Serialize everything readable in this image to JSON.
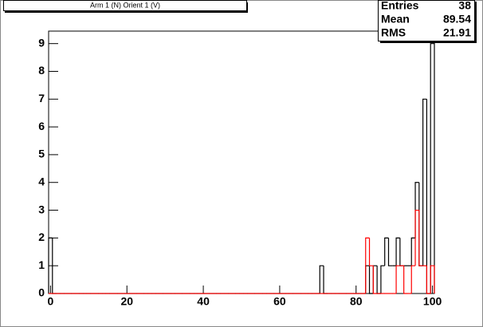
{
  "chart_data": {
    "type": "histogram",
    "title": "Arm 1 (N) Orient 1 (V)",
    "bins": [
      -0.5,
      0.5,
      1.5,
      2.5,
      3.5,
      4.5,
      5.5,
      6.5,
      7.5,
      8.5,
      9.5,
      10.5,
      11.5,
      12.5,
      13.5,
      14.5,
      15.5,
      16.5,
      17.5,
      18.5,
      19.5,
      20.5,
      21.5,
      22.5,
      23.5,
      24.5,
      25.5,
      26.5,
      27.5,
      28.5,
      29.5,
      30.5,
      31.5,
      32.5,
      33.5,
      34.5,
      35.5,
      36.5,
      37.5,
      38.5,
      39.5,
      40.5,
      41.5,
      42.5,
      43.5,
      44.5,
      45.5,
      46.5,
      47.5,
      48.5,
      49.5,
      50.5,
      51.5,
      52.5,
      53.5,
      54.5,
      55.5,
      56.5,
      57.5,
      58.5,
      59.5,
      60.5,
      61.5,
      62.5,
      63.5,
      64.5,
      65.5,
      66.5,
      67.5,
      68.5,
      69.5,
      70.5,
      71.5,
      72.5,
      73.5,
      74.5,
      75.5,
      76.5,
      77.5,
      78.5,
      79.5,
      80.5,
      81.5,
      82.5,
      83.5,
      84.5,
      85.5,
      86.5,
      87.5,
      88.5,
      89.5,
      90.5,
      91.5,
      92.5,
      93.5,
      94.5,
      95.5,
      96.5,
      97.5,
      98.5,
      99.5,
      100.5
    ],
    "series": [
      {
        "color": "#000000",
        "values": [
          2,
          0,
          0,
          0,
          0,
          0,
          0,
          0,
          0,
          0,
          0,
          0,
          0,
          0,
          0,
          0,
          0,
          0,
          0,
          0,
          0,
          0,
          0,
          0,
          0,
          0,
          0,
          0,
          0,
          0,
          0,
          0,
          0,
          0,
          0,
          0,
          0,
          0,
          0,
          0,
          0,
          0,
          0,
          0,
          0,
          0,
          0,
          0,
          0,
          0,
          0,
          0,
          0,
          0,
          0,
          0,
          0,
          0,
          0,
          0,
          0,
          0,
          0,
          0,
          0,
          0,
          0,
          0,
          0,
          0,
          0,
          1,
          0,
          0,
          0,
          0,
          0,
          0,
          0,
          0,
          0,
          0,
          0,
          1,
          0,
          1,
          0,
          1,
          2,
          1,
          1,
          2,
          1,
          1,
          1,
          2,
          4,
          1,
          7,
          0,
          9
        ]
      },
      {
        "color": "#ff0000",
        "values": [
          0,
          0,
          0,
          0,
          0,
          0,
          0,
          0,
          0,
          0,
          0,
          0,
          0,
          0,
          0,
          0,
          0,
          0,
          0,
          0,
          0,
          0,
          0,
          0,
          0,
          0,
          0,
          0,
          0,
          0,
          0,
          0,
          0,
          0,
          0,
          0,
          0,
          0,
          0,
          0,
          0,
          0,
          0,
          0,
          0,
          0,
          0,
          0,
          0,
          0,
          0,
          0,
          0,
          0,
          0,
          0,
          0,
          0,
          0,
          0,
          0,
          0,
          0,
          0,
          0,
          0,
          0,
          0,
          0,
          0,
          0,
          0,
          0,
          0,
          0,
          0,
          0,
          0,
          0,
          0,
          0,
          0,
          0,
          2,
          1,
          0,
          0,
          0,
          0,
          0,
          0,
          1,
          1,
          0,
          0,
          1,
          3,
          1,
          1,
          0,
          1
        ]
      }
    ],
    "xlim": [
      -0.5,
      100.5
    ],
    "xticks": [
      0,
      20,
      40,
      60,
      80,
      100
    ],
    "ylim": [
      0,
      9.45
    ],
    "yticks": [
      0,
      1,
      2,
      3,
      4,
      5,
      6,
      7,
      8,
      9
    ],
    "stats": [
      {
        "label": "Entries",
        "value": 38
      },
      {
        "label": "Mean",
        "value": 89.54
      },
      {
        "label": "RMS",
        "value": 21.91
      }
    ]
  }
}
